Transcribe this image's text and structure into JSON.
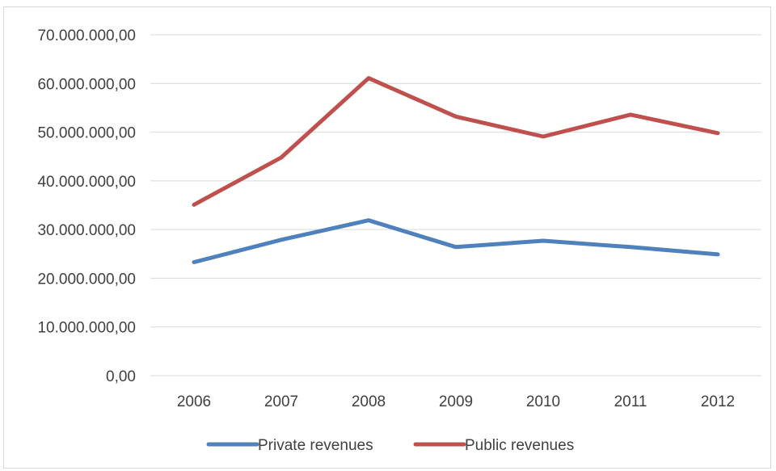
{
  "chart_data": {
    "type": "line",
    "categories": [
      "2006",
      "2007",
      "2008",
      "2009",
      "2010",
      "2011",
      "2012"
    ],
    "series": [
      {
        "name": "Private revenues",
        "color": "#4f81bd",
        "values": [
          23300000,
          27900000,
          31900000,
          26400000,
          27700000,
          26400000,
          24900000
        ]
      },
      {
        "name": "Public revenues",
        "color": "#c0504d",
        "values": [
          35100000,
          44800000,
          61100000,
          53200000,
          49100000,
          53600000,
          49800000
        ]
      }
    ],
    "yticks": [
      "0,00",
      "10.000.000,00",
      "20.000.000,00",
      "30.000.000,00",
      "40.000.000,00",
      "50.000.000,00",
      "60.000.000,00",
      "70.000.000,00"
    ],
    "ylim": [
      0,
      70000000
    ],
    "grid": "horizontal",
    "legend_position": "bottom",
    "gridline_color": "#d9d9d9"
  }
}
